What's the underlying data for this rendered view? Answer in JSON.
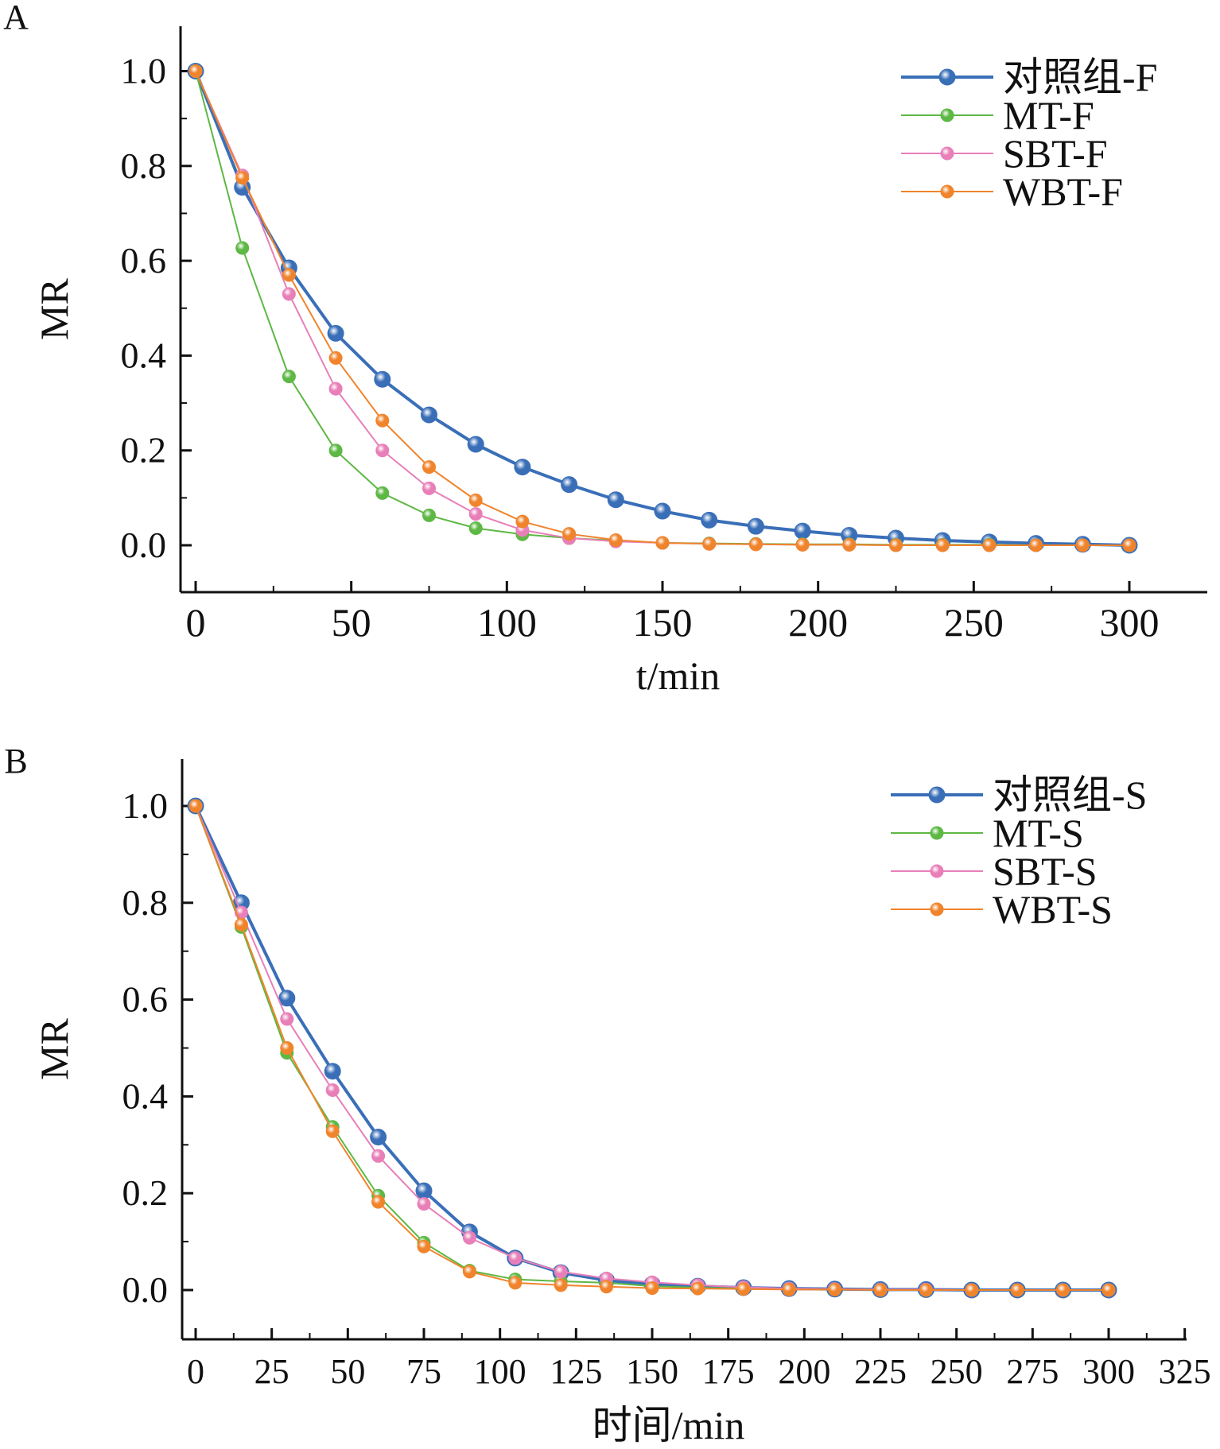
{
  "colors": {
    "control": "#3a6fb8",
    "MT": "#5db844",
    "SBT": "#e87fb8",
    "WBT": "#f0842c",
    "axis": "#111111"
  },
  "chart_data": [
    {
      "type": "line",
      "panel_label": "A",
      "xlabel": "t/min",
      "ylabel": "MR",
      "xlim": [
        -5,
        325
      ],
      "ylim": [
        -0.1,
        1.1
      ],
      "xticks": [
        0,
        50,
        100,
        150,
        200,
        250,
        300
      ],
      "yticks": [
        0.0,
        0.2,
        0.4,
        0.6,
        0.8,
        1.0
      ],
      "ytick_labels": [
        "0.0",
        "0.2",
        "0.4",
        "0.6",
        "0.8",
        "1.0"
      ],
      "grid": false,
      "legend_position": "top-right",
      "x": [
        0,
        15,
        30,
        45,
        60,
        75,
        90,
        105,
        120,
        135,
        150,
        165,
        180,
        195,
        210,
        225,
        240,
        255,
        270,
        285,
        300
      ],
      "series": [
        {
          "name": "对照组-F",
          "color_key": "control",
          "thick": true,
          "values": [
            1,
            0.755,
            0.585,
            0.447,
            0.35,
            0.275,
            0.213,
            0.165,
            0.128,
            0.096,
            0.072,
            0.053,
            0.04,
            0.03,
            0.021,
            0.015,
            0.01,
            0.007,
            0.004,
            0.002,
            0
          ]
        },
        {
          "name": "MT-F",
          "color_key": "MT",
          "thick": false,
          "values": [
            1,
            0.627,
            0.356,
            0.2,
            0.11,
            0.063,
            0.036,
            0.023,
            0.015,
            0.01,
            0.005,
            0.004,
            0.003,
            0.002,
            0.002,
            0.001,
            0.001,
            0.001,
            0,
            0,
            0
          ]
        },
        {
          "name": "SBT-F",
          "color_key": "SBT",
          "thick": false,
          "values": [
            1,
            0.78,
            0.53,
            0.33,
            0.2,
            0.12,
            0.066,
            0.032,
            0.015,
            0.008,
            0.005,
            0.003,
            0.002,
            0.001,
            0.001,
            0,
            0,
            0,
            0,
            0,
            0
          ]
        },
        {
          "name": "WBT-F",
          "color_key": "WBT",
          "thick": false,
          "values": [
            1,
            0.775,
            0.57,
            0.395,
            0.263,
            0.165,
            0.095,
            0.05,
            0.024,
            0.011,
            0.005,
            0.003,
            0.002,
            0.001,
            0.001,
            0,
            0,
            0,
            0,
            0,
            0
          ]
        }
      ]
    },
    {
      "type": "line",
      "panel_label": "B",
      "xlabel": "时间/min",
      "ylabel": "MR",
      "xlim": [
        -5,
        325
      ],
      "ylim": [
        -0.1,
        1.1
      ],
      "xticks": [
        0,
        25,
        50,
        75,
        100,
        125,
        150,
        175,
        200,
        225,
        250,
        275,
        300,
        325
      ],
      "yticks": [
        0.0,
        0.2,
        0.4,
        0.6,
        0.8,
        1.0
      ],
      "ytick_labels": [
        "0.0",
        "0.2",
        "0.4",
        "0.6",
        "0.8",
        "1.0"
      ],
      "grid": false,
      "legend_position": "top-right",
      "x": [
        0,
        15,
        30,
        45,
        60,
        75,
        90,
        105,
        120,
        135,
        150,
        165,
        180,
        195,
        210,
        225,
        240,
        255,
        270,
        285,
        300
      ],
      "series": [
        {
          "name": "对照组-S",
          "color_key": "control",
          "thick": true,
          "values": [
            1,
            0.8,
            0.603,
            0.452,
            0.316,
            0.205,
            0.12,
            0.066,
            0.036,
            0.02,
            0.012,
            0.008,
            0.005,
            0.003,
            0.002,
            0.001,
            0.001,
            0,
            0,
            0,
            0
          ]
        },
        {
          "name": "MT-S",
          "color_key": "MT",
          "thick": false,
          "values": [
            1,
            0.75,
            0.49,
            0.337,
            0.195,
            0.098,
            0.04,
            0.022,
            0.018,
            0.015,
            0.008,
            0.005,
            0.003,
            0.002,
            0.001,
            0.001,
            0,
            0,
            0,
            0,
            0
          ]
        },
        {
          "name": "SBT-S",
          "color_key": "SBT",
          "thick": false,
          "values": [
            1,
            0.78,
            0.56,
            0.413,
            0.277,
            0.178,
            0.108,
            0.066,
            0.038,
            0.024,
            0.016,
            0.01,
            0.006,
            0.003,
            0.002,
            0.001,
            0.001,
            0,
            0,
            0,
            0
          ]
        },
        {
          "name": "WBT-S",
          "color_key": "WBT",
          "thick": false,
          "values": [
            1,
            0.755,
            0.5,
            0.328,
            0.182,
            0.09,
            0.038,
            0.015,
            0.01,
            0.007,
            0.004,
            0.003,
            0.002,
            0.001,
            0.001,
            0,
            0,
            0,
            0,
            0,
            0
          ]
        }
      ]
    }
  ]
}
